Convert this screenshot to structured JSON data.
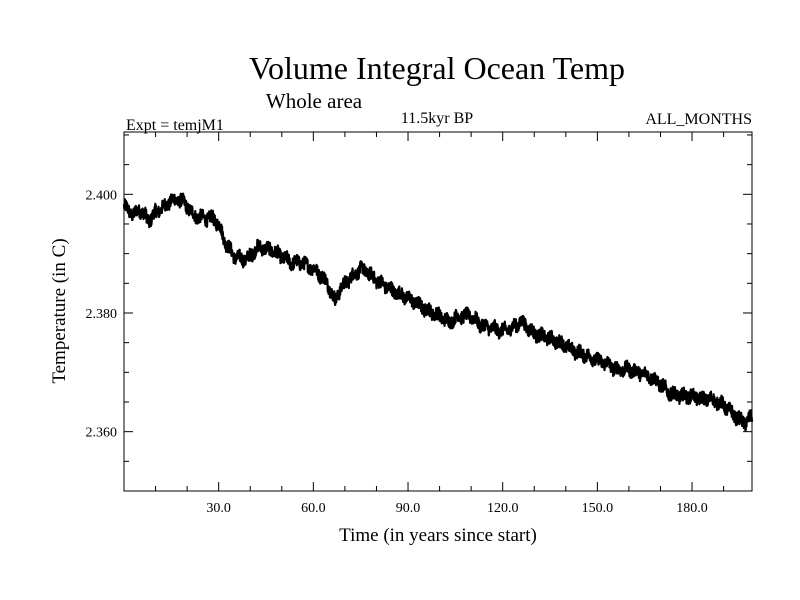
{
  "chart_data": {
    "type": "line",
    "title": "Volume Integral Ocean Temp",
    "subtitle": "Whole area",
    "annotations": {
      "experiment": "Expt = temjM1",
      "period": "11.5kyr BP",
      "months": "ALL_MONTHS"
    },
    "xlabel": "Time (in years since start)",
    "ylabel": "Temperature (in C)",
    "xlim": [
      0,
      199
    ],
    "ylim": [
      2.35,
      2.4105
    ],
    "x_ticks": [
      30,
      60,
      90,
      120,
      150,
      180
    ],
    "x_tick_labels": [
      "30.0",
      "60.0",
      "90.0",
      "120.0",
      "150.0",
      "180.0"
    ],
    "x_minor_step": 10,
    "y_ticks": [
      2.36,
      2.38,
      2.4
    ],
    "y_tick_labels": [
      "2.360",
      "2.380",
      "2.400"
    ],
    "y_minor_step": 0.005,
    "grid": false,
    "noise_amplitude": 0.0011,
    "samples_per_year": 12,
    "series": [
      {
        "name": "Volume integral ocean temperature",
        "color": "#000000",
        "x": [
          0,
          3,
          5,
          8,
          10,
          13,
          15,
          18,
          20,
          22,
          25,
          28,
          30,
          32,
          35,
          38,
          40,
          42,
          44,
          47,
          50,
          53,
          56,
          60,
          63,
          65,
          66,
          67,
          68,
          70,
          72,
          75,
          78,
          80,
          83,
          86,
          90,
          93,
          96,
          100,
          103,
          106,
          110,
          113,
          116,
          120,
          123,
          126,
          130,
          133,
          136,
          140,
          143,
          146,
          150,
          153,
          156,
          160,
          163,
          166,
          170,
          173,
          176,
          180,
          183,
          186,
          190,
          192,
          195,
          197,
          199
        ],
        "values": [
          2.398,
          2.3965,
          2.3975,
          2.3955,
          2.397,
          2.398,
          2.399,
          2.399,
          2.398,
          2.3965,
          2.396,
          2.396,
          2.395,
          2.392,
          2.3895,
          2.389,
          2.3895,
          2.391,
          2.391,
          2.3905,
          2.3895,
          2.3885,
          2.3885,
          2.3875,
          2.386,
          2.3845,
          2.383,
          2.382,
          2.3835,
          2.385,
          2.386,
          2.3875,
          2.3865,
          2.3855,
          2.3845,
          2.3835,
          2.3825,
          2.3815,
          2.3805,
          2.3795,
          2.3785,
          2.3795,
          2.3795,
          2.378,
          2.3775,
          2.377,
          2.3775,
          2.3785,
          2.3765,
          2.376,
          2.3755,
          2.3745,
          2.3735,
          2.373,
          2.372,
          2.3715,
          2.3705,
          2.3705,
          2.37,
          2.3695,
          2.368,
          2.3665,
          2.366,
          2.366,
          2.3655,
          2.3655,
          2.3645,
          2.3635,
          2.362,
          2.3615,
          2.3625
        ]
      }
    ]
  }
}
